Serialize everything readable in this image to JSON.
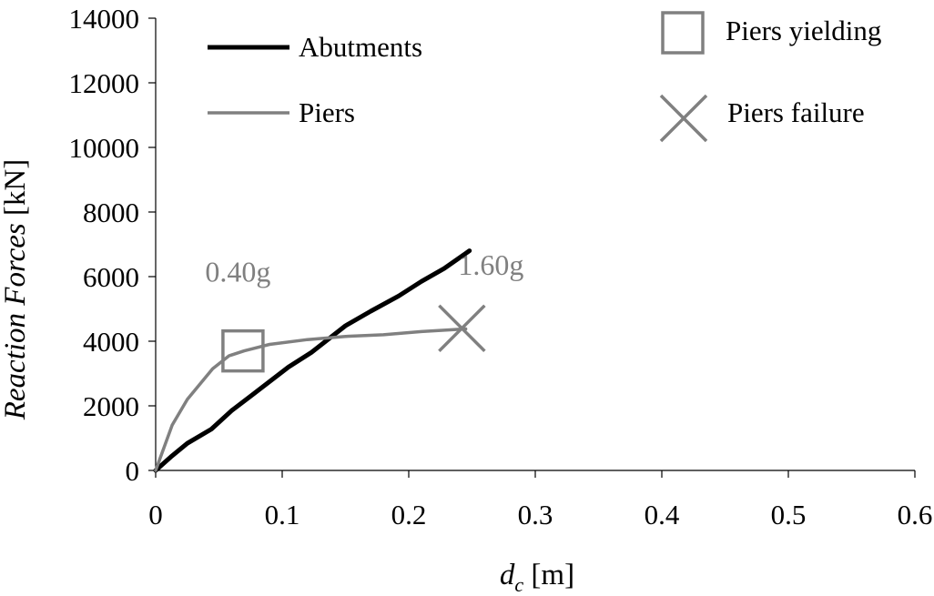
{
  "chart_data": {
    "type": "line",
    "xlabel": {
      "main": "d",
      "sub": "c",
      "unit": " [m]"
    },
    "ylabel": {
      "main": "Reaction Forces",
      "unit": " [kN]"
    },
    "xlim": [
      0,
      0.6
    ],
    "ylim": [
      0,
      14000
    ],
    "xticks": [
      0,
      0.1,
      0.2,
      0.3,
      0.4,
      0.5,
      0.6
    ],
    "xtick_labels": [
      "0",
      "0.1",
      "0.2",
      "0.3",
      "0.4",
      "0.5",
      "0.6"
    ],
    "yticks": [
      0,
      2000,
      4000,
      6000,
      8000,
      10000,
      12000,
      14000
    ],
    "ytick_labels": [
      "0",
      "2000",
      "4000",
      "6000",
      "8000",
      "10000",
      "12000",
      "14000"
    ],
    "grid": false,
    "legend_position": "top",
    "series": [
      {
        "name": "Abutments",
        "color": "#000000",
        "x": [
          0,
          0.012,
          0.025,
          0.044,
          0.06,
          0.075,
          0.09,
          0.105,
          0.123,
          0.15,
          0.17,
          0.192,
          0.21,
          0.228,
          0.248
        ],
        "y": [
          0,
          420,
          840,
          1280,
          1850,
          2300,
          2750,
          3200,
          3650,
          4480,
          4930,
          5400,
          5850,
          6250,
          6800
        ]
      },
      {
        "name": "Piers",
        "color": "#808080",
        "x": [
          0,
          0.013,
          0.025,
          0.045,
          0.058,
          0.07,
          0.09,
          0.12,
          0.15,
          0.18,
          0.21,
          0.245
        ],
        "y": [
          0,
          1400,
          2200,
          3150,
          3550,
          3700,
          3900,
          4050,
          4150,
          4200,
          4300,
          4380
        ]
      }
    ],
    "markers": [
      {
        "name": "Piers yielding",
        "shape": "square",
        "color": "#808080",
        "x": 0.069,
        "y": 3700
      },
      {
        "name": "Piers failure",
        "shape": "x",
        "color": "#808080",
        "x": 0.242,
        "y": 4400
      }
    ],
    "annotations": [
      {
        "text": "0.40g",
        "x": 0.065,
        "y": 5850,
        "color": "#808080"
      },
      {
        "text": "1.60g",
        "x": 0.265,
        "y": 6050,
        "color": "#808080"
      }
    ]
  }
}
